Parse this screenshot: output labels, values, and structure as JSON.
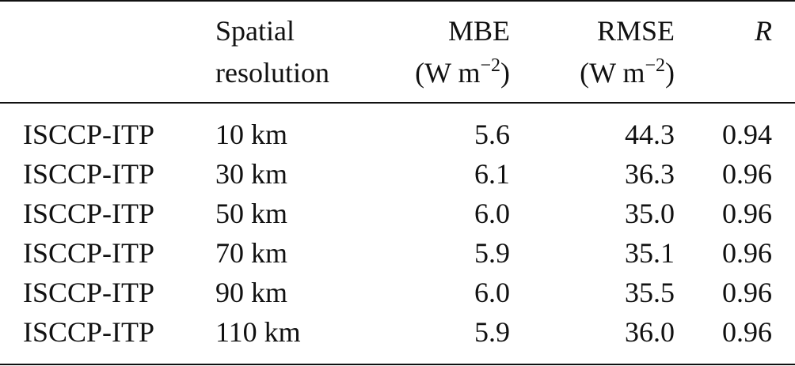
{
  "table": {
    "headers": {
      "resolution_line1": "Spatial",
      "resolution_line2": "resolution",
      "mbe_line1": "MBE",
      "mbe_unit": "(W m",
      "mbe_exp": "−2",
      "mbe_close": ")",
      "rmse_line1": "RMSE",
      "rmse_unit": "(W m",
      "rmse_exp": "−2",
      "rmse_close": ")",
      "r": "R"
    },
    "rows": [
      {
        "product": "ISCCP-ITP",
        "resolution": "10 km",
        "mbe": "5.6",
        "rmse": "44.3",
        "r": "0.94"
      },
      {
        "product": "ISCCP-ITP",
        "resolution": "30 km",
        "mbe": "6.1",
        "rmse": "36.3",
        "r": "0.96"
      },
      {
        "product": "ISCCP-ITP",
        "resolution": "50 km",
        "mbe": "6.0",
        "rmse": "35.0",
        "r": "0.96"
      },
      {
        "product": "ISCCP-ITP",
        "resolution": "70 km",
        "mbe": "5.9",
        "rmse": "35.1",
        "r": "0.96"
      },
      {
        "product": "ISCCP-ITP",
        "resolution": "90 km",
        "mbe": "6.0",
        "rmse": "35.5",
        "r": "0.96"
      },
      {
        "product": "ISCCP-ITP",
        "resolution": "110 km",
        "mbe": "5.9",
        "rmse": "36.0",
        "r": "0.96"
      }
    ]
  }
}
